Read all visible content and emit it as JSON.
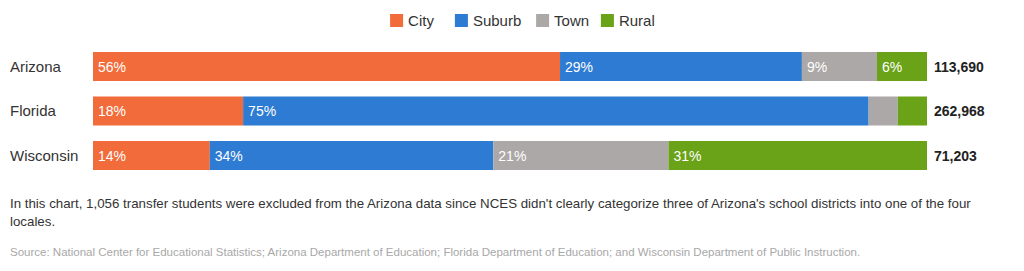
{
  "chart_data": {
    "type": "bar",
    "orientation": "horizontal",
    "stacked": true,
    "data_labels": true,
    "tick_labels": "y",
    "grid": false,
    "legend": "top",
    "categories": [
      "Arizona",
      "Florida",
      "Wisconsin"
    ],
    "xlim": [
      0,
      100
    ],
    "series": [
      {
        "name": "City",
        "color": "#f26b3a",
        "values": [
          56,
          18,
          14
        ],
        "value_labels": [
          "56%",
          "18%",
          "14%"
        ]
      },
      {
        "name": "Suburb",
        "color": "#2d7bd2",
        "values": [
          29,
          75,
          34
        ],
        "value_labels": [
          "29%",
          "75%",
          "34%"
        ]
      },
      {
        "name": "Town",
        "color": "#aca8a8",
        "values": [
          9,
          3.5,
          21
        ],
        "value_labels": [
          "9%",
          null,
          "21%"
        ]
      },
      {
        "name": "Rural",
        "color": "#6aa218",
        "values": [
          6,
          3.5,
          31
        ],
        "value_labels": [
          "6%",
          null,
          "31%"
        ]
      }
    ],
    "totals": [
      113690,
      262968,
      71203
    ],
    "total_labels": [
      "113,690",
      "262,968",
      "71,203"
    ],
    "notes": [
      "In this chart, 1,056 transfer students were excluded from the Arizona data since NCES didn't clearly categorize three of Arizona's school districts into one of the four",
      "locales."
    ],
    "source": "Source: National Center for Educational Statistics; Arizona Department of Education; Florida Department of Education; and Wisconsin Department of Public Instruction."
  }
}
